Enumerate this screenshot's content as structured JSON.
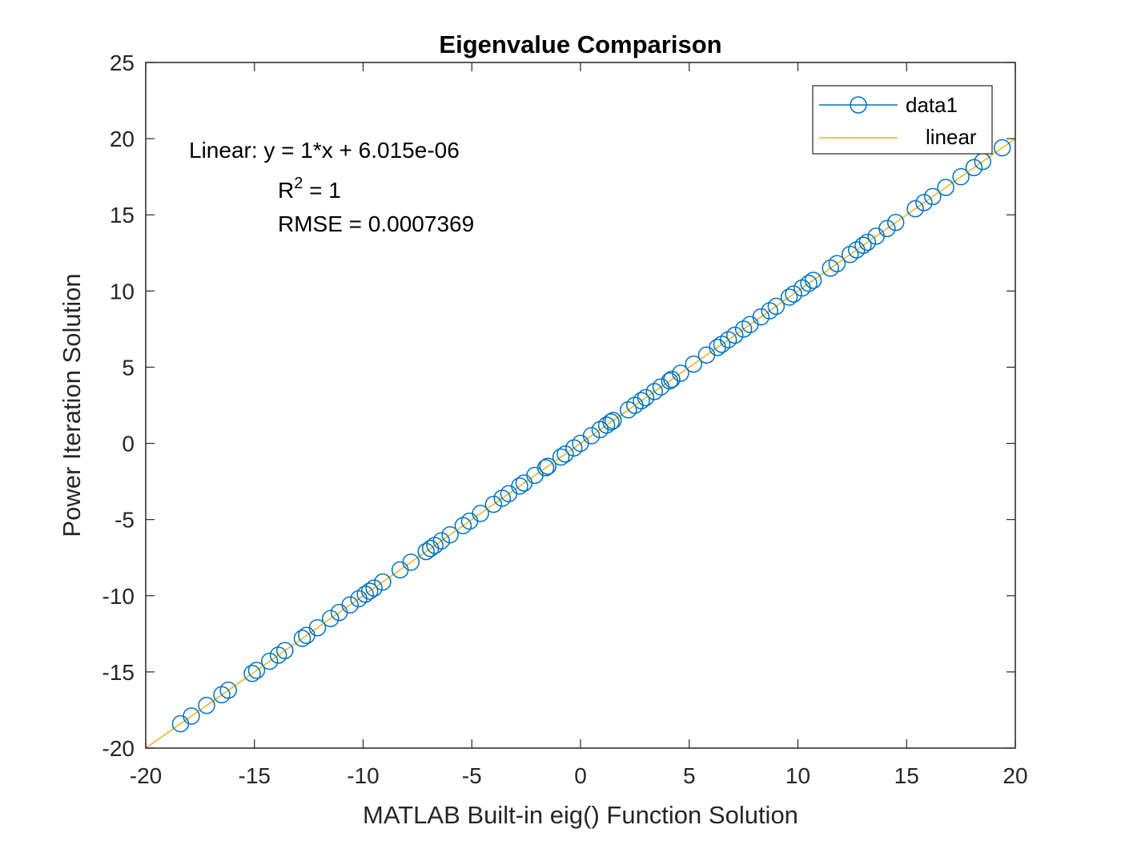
{
  "chart_data": {
    "type": "scatter",
    "title": "Eigenvalue Comparison",
    "xlabel": "MATLAB Built-in eig() Function Solution",
    "ylabel": "Power Iteration Solution",
    "xlim": [
      -20,
      20
    ],
    "ylim": [
      -20,
      25
    ],
    "xticks": [
      -20,
      -15,
      -10,
      -5,
      0,
      5,
      10,
      15,
      20
    ],
    "yticks": [
      -20,
      -15,
      -10,
      -5,
      0,
      5,
      10,
      15,
      20,
      25
    ],
    "grid": false,
    "legend_position": "top-right",
    "annotations": {
      "fit_equation": "Linear:  y = 1*x + 6.015e-06",
      "r_squared_base": "R",
      "r_squared_exp": "2",
      "r_squared_rest": " = 1",
      "rmse": "RMSE = 0.0007369"
    },
    "series": [
      {
        "name": "data1",
        "kind": "scatter",
        "marker": "circle",
        "color": "#0072BD",
        "x": [
          -18.4,
          -17.9,
          -17.2,
          -16.5,
          -16.2,
          -15.1,
          -14.9,
          -14.3,
          -13.9,
          -13.6,
          -12.8,
          -12.6,
          -12.1,
          -11.5,
          -11.1,
          -10.6,
          -10.2,
          -9.9,
          -9.7,
          -9.5,
          -9.1,
          -8.3,
          -7.8,
          -7.1,
          -6.9,
          -6.7,
          -6.4,
          -6.0,
          -5.4,
          -5.1,
          -4.6,
          -4.0,
          -3.6,
          -3.3,
          -2.8,
          -2.6,
          -2.1,
          -1.6,
          -1.5,
          -0.9,
          -0.7,
          -0.3,
          0.0,
          0.5,
          0.9,
          1.2,
          1.4,
          1.5,
          2.2,
          2.5,
          2.8,
          3.0,
          3.4,
          3.7,
          4.1,
          4.2,
          4.6,
          5.2,
          5.8,
          6.3,
          6.5,
          6.8,
          7.1,
          7.5,
          7.8,
          8.3,
          8.7,
          9.0,
          9.6,
          9.8,
          10.2,
          10.5,
          10.7,
          11.5,
          11.8,
          12.4,
          12.7,
          13.0,
          13.2,
          13.6,
          14.1,
          14.5,
          15.4,
          15.8,
          16.2,
          16.8,
          17.5,
          18.1,
          18.5,
          19.4
        ],
        "y": [
          -18.4,
          -17.9,
          -17.2,
          -16.5,
          -16.2,
          -15.1,
          -14.9,
          -14.3,
          -13.9,
          -13.6,
          -12.8,
          -12.6,
          -12.1,
          -11.5,
          -11.1,
          -10.6,
          -10.2,
          -9.9,
          -9.7,
          -9.5,
          -9.1,
          -8.3,
          -7.8,
          -7.1,
          -6.9,
          -6.7,
          -6.4,
          -6.0,
          -5.4,
          -5.1,
          -4.6,
          -4.0,
          -3.6,
          -3.3,
          -2.8,
          -2.6,
          -2.1,
          -1.6,
          -1.5,
          -0.9,
          -0.7,
          -0.3,
          0.0,
          0.5,
          0.9,
          1.2,
          1.4,
          1.5,
          2.2,
          2.5,
          2.8,
          3.0,
          3.4,
          3.7,
          4.1,
          4.2,
          4.6,
          5.2,
          5.8,
          6.3,
          6.5,
          6.8,
          7.1,
          7.5,
          7.8,
          8.3,
          8.7,
          9.0,
          9.6,
          9.8,
          10.2,
          10.5,
          10.7,
          11.5,
          11.8,
          12.4,
          12.7,
          13.0,
          13.2,
          13.6,
          14.1,
          14.5,
          15.4,
          15.8,
          16.2,
          16.8,
          17.5,
          18.1,
          18.5,
          19.4
        ]
      },
      {
        "name": "linear",
        "kind": "line",
        "color": "#EDB120",
        "slope": 1,
        "intercept": 6.015e-06
      }
    ]
  }
}
